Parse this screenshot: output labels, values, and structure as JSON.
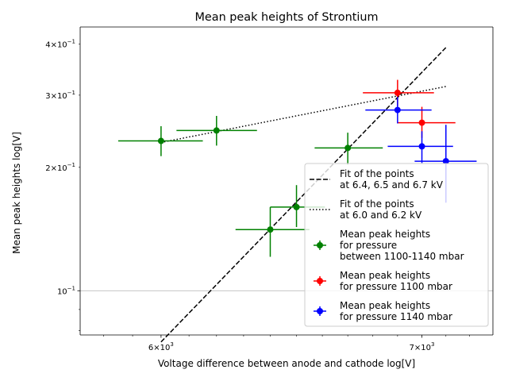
{
  "chart_data": {
    "type": "scatter",
    "title": "Mean peak heights of Strontium",
    "xlabel": "Voltage difference between anode and cathode log[V]",
    "ylabel": "Mean peak heights log[V]",
    "xscale": "log",
    "yscale": "log",
    "xlim": [
      5720,
      7300
    ],
    "ylim": [
      0.078,
      0.44
    ],
    "grid": "horizontal line at 1e-1",
    "legend_location": "lower-right",
    "x_ticks": [
      {
        "value": 6000,
        "base": "6",
        "exp": "3"
      },
      {
        "value": 7000,
        "base": "7",
        "exp": "3"
      }
    ],
    "y_ticks": [
      {
        "value": 0.1,
        "base": "10",
        "exp": "−1",
        "prefix": ""
      },
      {
        "value": 0.2,
        "base": "10",
        "exp": "−1",
        "prefix": "2×"
      },
      {
        "value": 0.3,
        "base": "10",
        "exp": "−1",
        "prefix": "3×"
      },
      {
        "value": 0.4,
        "base": "10",
        "exp": "−1",
        "prefix": "4×"
      }
    ],
    "series": [
      {
        "name": "Mean peak heights for pressure between 1100-1140 mbar",
        "color": "#008000",
        "points": [
          {
            "x": 6000,
            "y": 0.232,
            "xerr": [
              5850,
              6150
            ],
            "yerr": [
              0.213,
              0.252
            ]
          },
          {
            "x": 6200,
            "y": 0.246,
            "xerr": [
              6055,
              6350
            ],
            "yerr": [
              0.226,
              0.267
            ]
          },
          {
            "x": 6400,
            "y": 0.141,
            "xerr": [
              6270,
              6550
            ],
            "yerr": [
              0.121,
              0.16
            ]
          },
          {
            "x": 6500,
            "y": 0.16,
            "xerr": [
              6400,
              6610
            ],
            "yerr": [
              0.143,
              0.181
            ]
          },
          {
            "x": 6700,
            "y": 0.223,
            "xerr": [
              6570,
              6840
            ],
            "yerr": [
              0.203,
              0.243
            ]
          }
        ]
      },
      {
        "name": "Mean peak heights for pressure 1100 mbar",
        "color": "#ff0000",
        "points": [
          {
            "x": 6900,
            "y": 0.304,
            "xerr": [
              6760,
              7050
            ],
            "yerr": [
              0.282,
              0.327
            ]
          },
          {
            "x": 7000,
            "y": 0.257,
            "xerr": [
              6900,
              7140
            ],
            "yerr": [
              0.236,
              0.281
            ]
          }
        ]
      },
      {
        "name": "Mean peak heights for pressure 1140 mbar",
        "color": "#0000ff",
        "points": [
          {
            "x": 6900,
            "y": 0.276,
            "xerr": [
              6770,
              7040
            ],
            "yerr": [
              0.256,
              0.297
            ]
          },
          {
            "x": 7000,
            "y": 0.225,
            "xerr": [
              6860,
              7130
            ],
            "yerr": [
              0.205,
              0.245
            ]
          },
          {
            "x": 7100,
            "y": 0.207,
            "xerr": [
              6970,
              7230
            ],
            "yerr": [
              0.164,
              0.254
            ]
          }
        ]
      }
    ],
    "fits": [
      {
        "name": "Fit of the points at 6.4, 6.5 and 6.7 kV",
        "style": "dashed",
        "x": [
          6000,
          7100
        ],
        "y": [
          0.075,
          0.392
        ]
      },
      {
        "name": "Fit of the points at 6.0 and 6.2 kV",
        "style": "dotted",
        "x": [
          6000,
          7100
        ],
        "y": [
          0.23,
          0.315
        ]
      }
    ],
    "legend": [
      {
        "style": "dashed",
        "lines": [
          "Fit of the points",
          "at 6.4, 6.5 and 6.7 kV"
        ]
      },
      {
        "style": "dotted",
        "lines": [
          "Fit of the points",
          "at 6.0 and 6.2 kV"
        ]
      },
      {
        "style": "errorbar",
        "color": "#008000",
        "lines": [
          "Mean peak heights",
          "for pressure",
          "between 1100-1140 mbar"
        ]
      },
      {
        "style": "errorbar",
        "color": "#ff0000",
        "lines": [
          "Mean peak heights",
          "for pressure 1100 mbar"
        ]
      },
      {
        "style": "errorbar",
        "color": "#0000ff",
        "lines": [
          "Mean peak heights",
          "for pressure 1140 mbar"
        ]
      }
    ]
  }
}
